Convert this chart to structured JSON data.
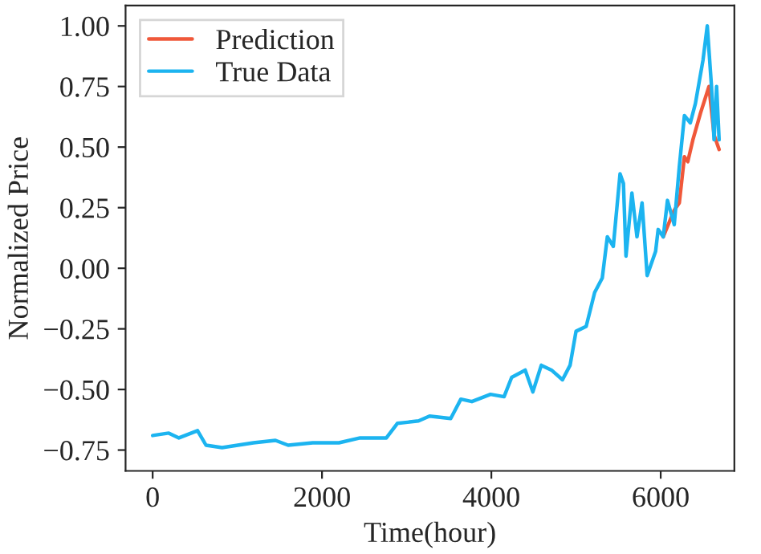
{
  "chart_data": {
    "type": "line",
    "xlabel": "Time(hour)",
    "ylabel": "Normalized Price",
    "xlim": [
      -320,
      6870
    ],
    "ylim": [
      -0.836,
      1.084
    ],
    "xticks": [
      0,
      2000,
      4000,
      6000
    ],
    "yticks": [
      {
        "value": -0.75,
        "label": "−0.75"
      },
      {
        "value": -0.5,
        "label": "−0.50"
      },
      {
        "value": -0.25,
        "label": "−0.25"
      },
      {
        "value": 0,
        "label": "0.00"
      },
      {
        "value": 0.25,
        "label": "0.25"
      },
      {
        "value": 0.5,
        "label": "0.50"
      },
      {
        "value": 0.75,
        "label": "0.75"
      },
      {
        "value": 1.0,
        "label": "1.00"
      }
    ],
    "grid": false,
    "legend": "top left",
    "series": [
      {
        "name": "Prediction",
        "color": "#f0583a",
        "x": [
          6030,
          6160,
          6220,
          6280,
          6320,
          6380,
          6470,
          6570,
          6630,
          6690
        ],
        "values": [
          0.13,
          0.24,
          0.27,
          0.46,
          0.44,
          0.53,
          0.64,
          0.75,
          0.55,
          0.49
        ]
      },
      {
        "name": "True Data",
        "color": "#1cb4f0",
        "x": [
          0,
          190,
          310,
          530,
          630,
          820,
          1190,
          1450,
          1600,
          1890,
          2200,
          2450,
          2760,
          2890,
          3140,
          3270,
          3520,
          3640,
          3770,
          3990,
          4150,
          4240,
          4400,
          4490,
          4590,
          4710,
          4840,
          4930,
          5000,
          5120,
          5220,
          5310,
          5370,
          5440,
          5520,
          5560,
          5590,
          5660,
          5720,
          5780,
          5840,
          5940,
          5970,
          6030,
          6080,
          6160,
          6220,
          6280,
          6350,
          6410,
          6500,
          6550,
          6600,
          6630,
          6660,
          6690
        ],
        "values": [
          -0.69,
          -0.68,
          -0.7,
          -0.67,
          -0.73,
          -0.74,
          -0.72,
          -0.71,
          -0.73,
          -0.72,
          -0.72,
          -0.7,
          -0.7,
          -0.64,
          -0.63,
          -0.61,
          -0.62,
          -0.54,
          -0.55,
          -0.52,
          -0.53,
          -0.45,
          -0.42,
          -0.51,
          -0.4,
          -0.42,
          -0.46,
          -0.4,
          -0.26,
          -0.24,
          -0.1,
          -0.04,
          0.13,
          0.09,
          0.39,
          0.35,
          0.05,
          0.31,
          0.13,
          0.27,
          -0.03,
          0.07,
          0.16,
          0.13,
          0.28,
          0.18,
          0.42,
          0.63,
          0.6,
          0.68,
          0.86,
          1.0,
          0.75,
          0.53,
          0.75,
          0.53
        ]
      }
    ]
  }
}
